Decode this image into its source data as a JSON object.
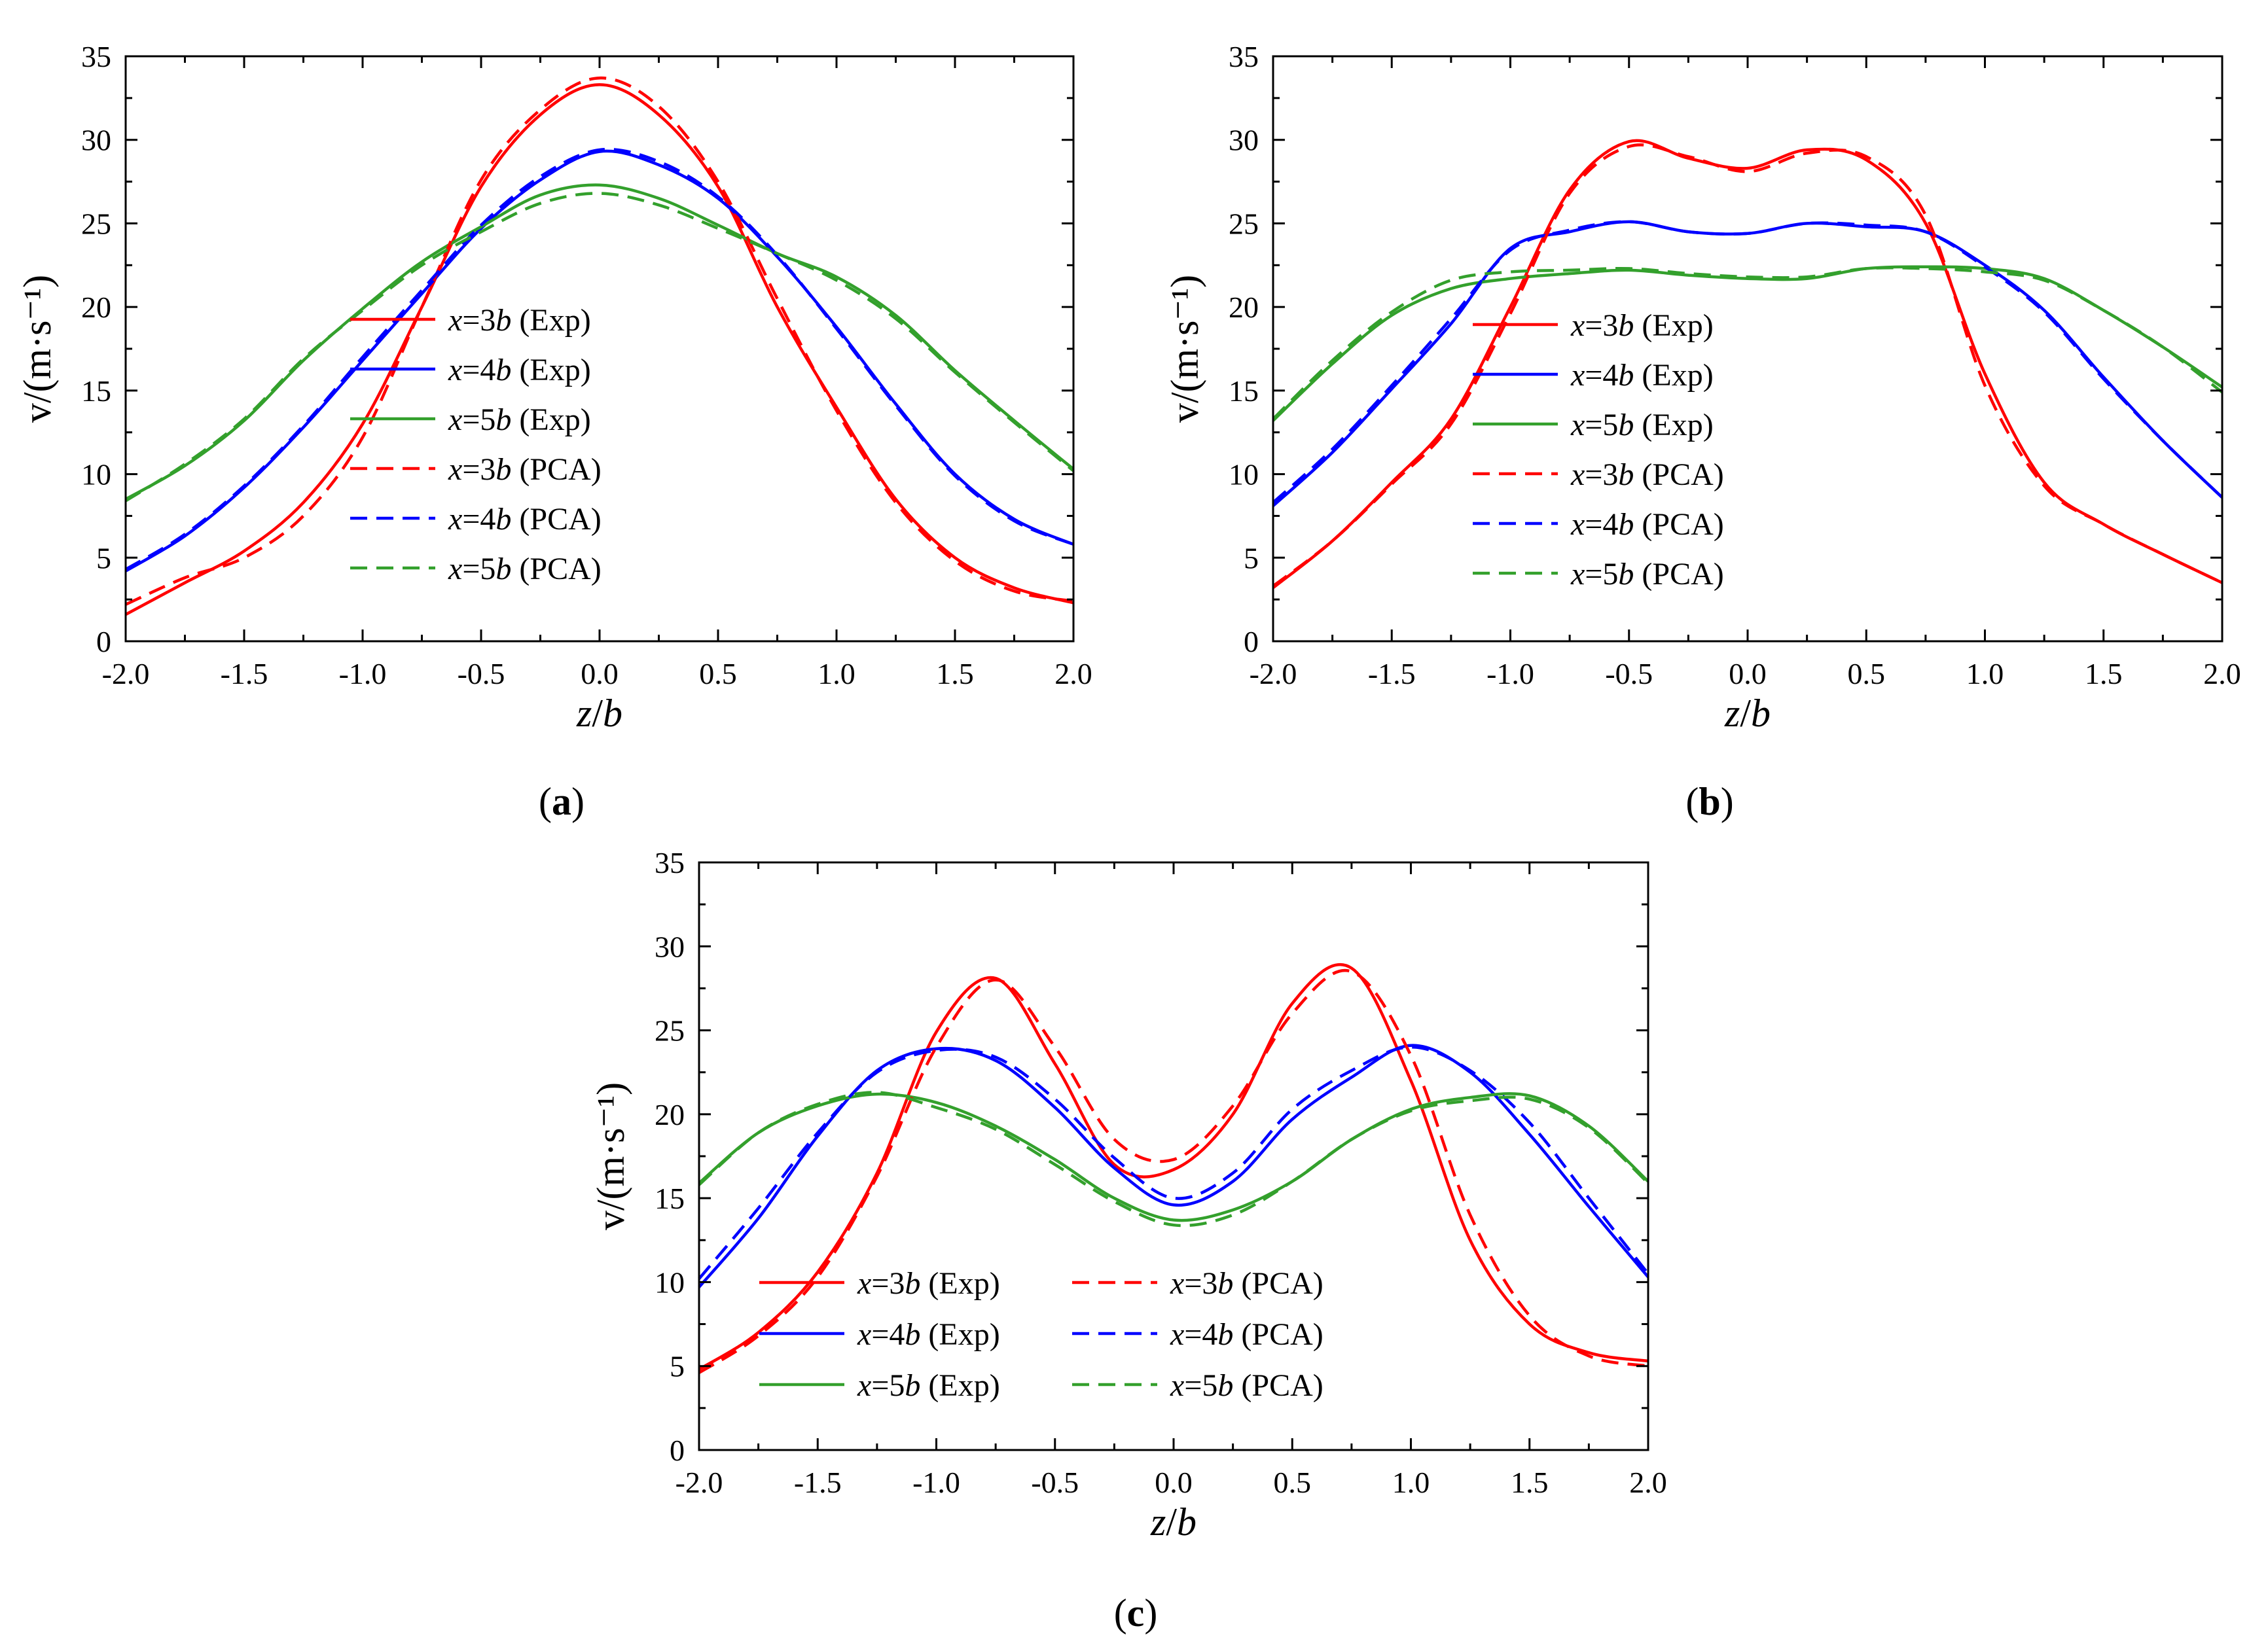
{
  "chart_data": [
    {
      "panel": "a",
      "caption_letter": "a",
      "type": "line",
      "xlabel_var": "z",
      "xlabel_div": "b",
      "ylabel": "v/(m·s⁻¹)",
      "xlim": [
        -2.0,
        2.0
      ],
      "ylim": [
        0,
        35
      ],
      "xticks": [
        "-2.0",
        "-1.5",
        "-1.0",
        "-0.5",
        "0.0",
        "0.5",
        "1.0",
        "1.5",
        "2.0"
      ],
      "yticks": [
        "0",
        "5",
        "10",
        "15",
        "20",
        "25",
        "30",
        "35"
      ],
      "legend_layout": "single-column",
      "series": [
        {
          "name": "x=3b (Exp)",
          "var": "x",
          "eq": "=3",
          "b": "b",
          "tag": " (Exp)",
          "color": "#ff0000",
          "dash": false,
          "x": [
            -2.0,
            -1.75,
            -1.5,
            -1.25,
            -1.0,
            -0.75,
            -0.5,
            -0.25,
            0.0,
            0.25,
            0.5,
            0.75,
            1.0,
            1.25,
            1.5,
            1.75,
            2.0
          ],
          "y": [
            1.6,
            3.5,
            5.4,
            8.3,
            13.0,
            20.0,
            27.2,
            31.5,
            33.3,
            31.5,
            27.2,
            20.0,
            14.0,
            8.5,
            5.0,
            3.2,
            2.3
          ]
        },
        {
          "name": "x=4b (Exp)",
          "var": "x",
          "eq": "=4",
          "b": "b",
          "tag": " (Exp)",
          "color": "#0000ff",
          "dash": false,
          "x": [
            -2.0,
            -1.75,
            -1.5,
            -1.25,
            -1.0,
            -0.75,
            -0.5,
            -0.25,
            0.0,
            0.25,
            0.5,
            0.75,
            1.0,
            1.25,
            1.5,
            1.75,
            2.0
          ],
          "y": [
            4.2,
            6.3,
            9.2,
            12.8,
            16.8,
            20.8,
            24.7,
            27.6,
            29.3,
            28.5,
            26.5,
            23.0,
            18.8,
            14.2,
            10.0,
            7.3,
            5.8
          ]
        },
        {
          "name": "x=5b (Exp)",
          "var": "x",
          "eq": "=5",
          "b": "b",
          "tag": " (Exp)",
          "color": "#33a02c",
          "dash": false,
          "x": [
            -2.0,
            -1.75,
            -1.5,
            -1.25,
            -1.0,
            -0.75,
            -0.5,
            -0.25,
            0.0,
            0.25,
            0.5,
            0.75,
            1.0,
            1.25,
            1.5,
            1.75,
            2.0
          ],
          "y": [
            8.5,
            10.5,
            13.2,
            16.8,
            19.9,
            22.7,
            24.8,
            26.7,
            27.3,
            26.5,
            24.9,
            23.2,
            21.8,
            19.5,
            16.2,
            13.2,
            10.3
          ]
        },
        {
          "name": "x=3b (PCA)",
          "var": "x",
          "eq": "=3",
          "b": "b",
          "tag": " (PCA)",
          "color": "#ff0000",
          "dash": true,
          "x": [
            -2.0,
            -1.75,
            -1.5,
            -1.25,
            -1.0,
            -0.75,
            -0.5,
            -0.25,
            0.0,
            0.25,
            0.5,
            0.75,
            1.0,
            1.25,
            1.5,
            1.75,
            2.0
          ],
          "y": [
            2.2,
            3.8,
            5.0,
            7.5,
            12.2,
            20.0,
            27.6,
            31.8,
            33.7,
            32.0,
            27.5,
            20.5,
            13.8,
            8.3,
            4.8,
            3.0,
            2.4
          ]
        },
        {
          "name": "x=4b (PCA)",
          "var": "x",
          "eq": "=4",
          "b": "b",
          "tag": " (PCA)",
          "color": "#0000ff",
          "dash": true,
          "x": [
            -2.0,
            -1.75,
            -1.5,
            -1.25,
            -1.0,
            -0.75,
            -0.5,
            -0.25,
            0.0,
            0.25,
            0.5,
            0.75,
            1.0,
            1.25,
            1.5,
            1.75,
            2.0
          ],
          "y": [
            4.3,
            6.4,
            9.3,
            12.9,
            17.0,
            21.0,
            24.9,
            27.8,
            29.4,
            28.7,
            26.6,
            23.1,
            18.7,
            14.1,
            9.9,
            7.2,
            5.8
          ]
        },
        {
          "name": "x=5b (PCA)",
          "var": "x",
          "eq": "=5",
          "b": "b",
          "tag": " (PCA)",
          "color": "#33a02c",
          "dash": true,
          "x": [
            -2.0,
            -1.75,
            -1.5,
            -1.25,
            -1.0,
            -0.75,
            -0.5,
            -0.25,
            0.0,
            0.25,
            0.5,
            0.75,
            1.0,
            1.25,
            1.5,
            1.75,
            2.0
          ],
          "y": [
            8.4,
            10.6,
            13.3,
            16.9,
            19.8,
            22.5,
            24.5,
            26.2,
            26.8,
            26.1,
            24.7,
            23.2,
            21.6,
            19.3,
            16.1,
            13.1,
            10.2
          ]
        }
      ]
    },
    {
      "panel": "b",
      "caption_letter": "b",
      "type": "line",
      "xlabel_var": "z",
      "xlabel_div": "b",
      "ylabel": "v/(m·s⁻¹)",
      "xlim": [
        -2.0,
        2.0
      ],
      "ylim": [
        0,
        35
      ],
      "xticks": [
        "-2.0",
        "-1.5",
        "-1.0",
        "-0.5",
        "0.0",
        "0.5",
        "1.0",
        "1.5",
        "2.0"
      ],
      "yticks": [
        "0",
        "5",
        "10",
        "15",
        "20",
        "25",
        "30",
        "35"
      ],
      "legend_layout": "single-column",
      "series": [
        {
          "name": "x=3b (Exp)",
          "var": "x",
          "eq": "=3",
          "b": "b",
          "tag": " (Exp)",
          "color": "#ff0000",
          "dash": false,
          "x": [
            -2.0,
            -1.75,
            -1.5,
            -1.25,
            -1.0,
            -0.75,
            -0.5,
            -0.25,
            0.0,
            0.25,
            0.5,
            0.75,
            1.0,
            1.25,
            1.5,
            1.75,
            2.0
          ],
          "y": [
            3.2,
            6.0,
            9.5,
            13.3,
            20.0,
            27.0,
            29.9,
            28.9,
            28.3,
            29.4,
            28.8,
            25.0,
            16.0,
            9.5,
            7.0,
            5.2,
            3.5
          ]
        },
        {
          "name": "x=4b (Exp)",
          "var": "x",
          "eq": "=4",
          "b": "b",
          "tag": " (Exp)",
          "color": "#0000ff",
          "dash": false,
          "x": [
            -2.0,
            -1.75,
            -1.5,
            -1.25,
            -1.0,
            -0.75,
            -0.5,
            -0.25,
            0.0,
            0.25,
            0.5,
            0.75,
            1.0,
            1.25,
            1.5,
            1.75,
            2.0
          ],
          "y": [
            8.1,
            11.3,
            15.1,
            19.0,
            23.5,
            24.5,
            25.1,
            24.5,
            24.4,
            25.0,
            24.8,
            24.5,
            22.5,
            19.8,
            15.8,
            12.0,
            8.6
          ]
        },
        {
          "name": "x=5b (Exp)",
          "var": "x",
          "eq": "=5",
          "b": "b",
          "tag": " (Exp)",
          "color": "#33a02c",
          "dash": false,
          "x": [
            -2.0,
            -1.75,
            -1.5,
            -1.25,
            -1.0,
            -0.75,
            -0.5,
            -0.25,
            0.0,
            0.25,
            0.5,
            0.75,
            1.0,
            1.25,
            1.5,
            1.75,
            2.0
          ],
          "y": [
            13.2,
            16.6,
            19.5,
            21.1,
            21.7,
            22.0,
            22.2,
            21.9,
            21.7,
            21.7,
            22.3,
            22.4,
            22.3,
            21.7,
            19.8,
            17.6,
            15.2
          ]
        },
        {
          "name": "x=3b (PCA)",
          "var": "x",
          "eq": "=3",
          "b": "b",
          "tag": " (PCA)",
          "color": "#ff0000",
          "dash": true,
          "x": [
            -2.0,
            -1.75,
            -1.5,
            -1.25,
            -1.0,
            -0.75,
            -0.5,
            -0.25,
            0.0,
            0.25,
            0.5,
            0.75,
            1.0,
            1.25,
            1.5,
            1.75,
            2.0
          ],
          "y": [
            3.3,
            6.0,
            9.4,
            13.0,
            19.6,
            26.8,
            29.6,
            29.0,
            28.1,
            29.2,
            29.0,
            25.5,
            15.3,
            9.3,
            7.0,
            5.2,
            3.5
          ]
        },
        {
          "name": "x=4b (PCA)",
          "var": "x",
          "eq": "=4",
          "b": "b",
          "tag": " (PCA)",
          "color": "#0000ff",
          "dash": true,
          "x": [
            -2.0,
            -1.75,
            -1.5,
            -1.25,
            -1.0,
            -0.75,
            -0.5,
            -0.25,
            0.0,
            0.25,
            0.5,
            0.75,
            1.0,
            1.25,
            1.5,
            1.75,
            2.0
          ],
          "y": [
            8.3,
            11.5,
            15.3,
            19.3,
            23.4,
            24.6,
            25.1,
            24.5,
            24.4,
            25.0,
            24.9,
            24.5,
            22.4,
            19.7,
            15.7,
            12.0,
            8.6
          ]
        },
        {
          "name": "x=5b (PCA)",
          "var": "x",
          "eq": "=5",
          "b": "b",
          "tag": " (PCA)",
          "color": "#33a02c",
          "dash": true,
          "x": [
            -2.0,
            -1.75,
            -1.5,
            -1.25,
            -1.0,
            -0.75,
            -0.5,
            -0.25,
            0.0,
            0.25,
            0.5,
            0.75,
            1.0,
            1.25,
            1.5,
            1.75,
            2.0
          ],
          "y": [
            13.3,
            16.8,
            19.7,
            21.6,
            22.1,
            22.2,
            22.3,
            22.0,
            21.8,
            21.8,
            22.3,
            22.3,
            22.1,
            21.6,
            19.8,
            17.6,
            14.9
          ]
        }
      ]
    },
    {
      "panel": "c",
      "caption_letter": "c",
      "type": "line",
      "xlabel_var": "z",
      "xlabel_div": "b",
      "ylabel": "v/(m·s⁻¹)",
      "xlim": [
        -2.0,
        2.0
      ],
      "ylim": [
        0,
        35
      ],
      "xticks": [
        "-2.0",
        "-1.5",
        "-1.0",
        "-0.5",
        "0.0",
        "0.5",
        "1.0",
        "1.5",
        "2.0"
      ],
      "yticks": [
        "0",
        "5",
        "10",
        "15",
        "20",
        "25",
        "30",
        "35"
      ],
      "legend_layout": "two-column",
      "series": [
        {
          "name": "x=3b (Exp)",
          "var": "x",
          "eq": "=3",
          "b": "b",
          "tag": " (Exp)",
          "color": "#ff0000",
          "dash": false,
          "x": [
            -2.0,
            -1.75,
            -1.5,
            -1.25,
            -1.0,
            -0.75,
            -0.5,
            -0.25,
            0.0,
            0.25,
            0.5,
            0.75,
            1.0,
            1.25,
            1.5,
            1.75,
            2.0
          ],
          "y": [
            4.8,
            7.0,
            10.6,
            16.5,
            24.9,
            28.1,
            23.0,
            17.0,
            16.7,
            20.0,
            26.6,
            28.7,
            22.0,
            12.5,
            7.5,
            5.8,
            5.3
          ]
        },
        {
          "name": "x=4b (Exp)",
          "var": "x",
          "eq": "=4",
          "b": "b",
          "tag": " (Exp)",
          "color": "#0000ff",
          "dash": false,
          "x": [
            -2.0,
            -1.75,
            -1.5,
            -1.25,
            -1.0,
            -0.75,
            -0.5,
            -0.25,
            0.0,
            0.25,
            0.5,
            0.75,
            1.0,
            1.25,
            1.5,
            1.75,
            2.0
          ],
          "y": [
            9.7,
            13.8,
            18.7,
            22.6,
            23.9,
            23.2,
            20.4,
            16.8,
            14.6,
            16.0,
            19.7,
            22.2,
            24.1,
            22.5,
            18.8,
            14.5,
            10.3
          ]
        },
        {
          "name": "x=5b (Exp)",
          "var": "x",
          "eq": "=5",
          "b": "b",
          "tag": " (Exp)",
          "color": "#33a02c",
          "dash": false,
          "x": [
            -2.0,
            -1.75,
            -1.5,
            -1.25,
            -1.0,
            -0.75,
            -0.5,
            -0.25,
            0.0,
            0.25,
            0.5,
            0.75,
            1.0,
            1.25,
            1.5,
            1.75,
            2.0
          ],
          "y": [
            15.9,
            18.9,
            20.5,
            21.2,
            20.7,
            19.3,
            17.3,
            15.0,
            13.7,
            14.3,
            16.0,
            18.5,
            20.3,
            21.0,
            21.1,
            19.3,
            16.0
          ]
        },
        {
          "name": "x=3b (PCA)",
          "var": "x",
          "eq": "=3",
          "b": "b",
          "tag": " (PCA)",
          "color": "#ff0000",
          "dash": true,
          "x": [
            -2.0,
            -1.75,
            -1.5,
            -1.25,
            -1.0,
            -0.75,
            -0.5,
            -0.25,
            0.0,
            0.25,
            0.5,
            0.75,
            1.0,
            1.25,
            1.5,
            1.75,
            2.0
          ],
          "y": [
            4.6,
            6.8,
            10.3,
            16.3,
            24.0,
            28.0,
            24.0,
            18.5,
            17.3,
            20.5,
            26.0,
            28.5,
            23.5,
            14.0,
            8.0,
            5.6,
            5.0
          ]
        },
        {
          "name": "x=4b (PCA)",
          "var": "x",
          "eq": "=4",
          "b": "b",
          "tag": " (PCA)",
          "color": "#0000ff",
          "dash": true,
          "x": [
            -2.0,
            -1.75,
            -1.5,
            -1.25,
            -1.0,
            -0.75,
            -0.5,
            -0.25,
            0.0,
            0.25,
            0.5,
            0.75,
            1.0,
            1.25,
            1.5,
            1.75,
            2.0
          ],
          "y": [
            10.2,
            14.4,
            18.9,
            22.5,
            23.8,
            23.4,
            20.9,
            17.4,
            15.0,
            16.5,
            20.3,
            22.6,
            24.0,
            22.6,
            19.5,
            15.0,
            10.5
          ]
        },
        {
          "name": "x=5b (PCA)",
          "var": "x",
          "eq": "=5",
          "b": "b",
          "tag": " (PCA)",
          "color": "#33a02c",
          "dash": true,
          "x": [
            -2.0,
            -1.75,
            -1.5,
            -1.25,
            -1.0,
            -0.75,
            -0.5,
            -0.25,
            0.0,
            0.25,
            0.5,
            0.75,
            1.0,
            1.25,
            1.5,
            1.75,
            2.0
          ],
          "y": [
            15.8,
            18.9,
            20.6,
            21.3,
            20.4,
            19.1,
            17.0,
            14.8,
            13.4,
            14.0,
            16.0,
            18.5,
            20.2,
            20.8,
            20.9,
            19.2,
            15.9
          ]
        }
      ]
    }
  ]
}
